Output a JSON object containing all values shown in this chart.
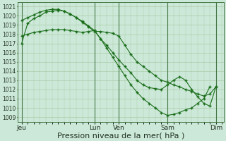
{
  "bg_color": "#cce8d8",
  "grid_color": "#aaccaa",
  "line_color": "#1a6e1a",
  "marker_color": "#1a6e1a",
  "xlabel": "Pression niveau de la mer( hPa )",
  "xlabel_fontsize": 8,
  "yticks": [
    1009,
    1010,
    1011,
    1012,
    1013,
    1014,
    1015,
    1016,
    1017,
    1018,
    1019,
    1020,
    1021
  ],
  "ylim": [
    1008.5,
    1021.5
  ],
  "xtick_labels": [
    "Jeu",
    "Lun",
    "Ven",
    "Sam",
    "Dim"
  ],
  "xtick_positions": [
    0,
    36,
    48,
    72,
    96
  ],
  "vline_positions": [
    0,
    36,
    48,
    72,
    96
  ],
  "xlim": [
    -2,
    100
  ],
  "series_x": [
    [
      0,
      3,
      6,
      9,
      12,
      15,
      18,
      21,
      24,
      27,
      30,
      33,
      36,
      39,
      42,
      45,
      48,
      51,
      54,
      57,
      60,
      63,
      66,
      69,
      72,
      75,
      78,
      81,
      84,
      87,
      90,
      93,
      96
    ],
    [
      0,
      3,
      6,
      9,
      12,
      15,
      18,
      21,
      24,
      27,
      30,
      33,
      36,
      39,
      42,
      45,
      48,
      51,
      54,
      57,
      60,
      63,
      66,
      69,
      72,
      75,
      78,
      81,
      84,
      87,
      90,
      93,
      96
    ],
    [
      0,
      3,
      6,
      9,
      12,
      15,
      18,
      21,
      24,
      27,
      30,
      33,
      36,
      39,
      42,
      45,
      48,
      51,
      54,
      57,
      60,
      63,
      66,
      69,
      72,
      75,
      78,
      81,
      84,
      87,
      90,
      93
    ]
  ],
  "series": [
    [
      1017.0,
      1019.2,
      1019.7,
      1020.0,
      1020.4,
      1020.5,
      1020.6,
      1020.5,
      1020.2,
      1019.8,
      1019.3,
      1018.8,
      1018.3,
      1018.3,
      1018.2,
      1018.1,
      1017.8,
      1016.8,
      1015.8,
      1015.0,
      1014.5,
      1014.0,
      1013.5,
      1013.0,
      1012.8,
      1012.5,
      1012.3,
      1012.0,
      1011.8,
      1011.5,
      1011.3,
      1011.5,
      1012.3
    ],
    [
      1019.5,
      1019.8,
      1020.1,
      1020.4,
      1020.6,
      1020.7,
      1020.7,
      1020.5,
      1020.2,
      1019.8,
      1019.4,
      1018.9,
      1018.4,
      1017.5,
      1016.8,
      1016.0,
      1015.2,
      1014.5,
      1013.8,
      1013.0,
      1012.5,
      1012.2,
      1012.1,
      1012.0,
      1012.5,
      1013.0,
      1013.4,
      1013.0,
      1012.0,
      1011.2,
      1010.5,
      1010.2,
      1012.3
    ],
    [
      1017.8,
      1018.0,
      1018.2,
      1018.3,
      1018.4,
      1018.5,
      1018.5,
      1018.5,
      1018.4,
      1018.3,
      1018.2,
      1018.3,
      1018.4,
      1017.5,
      1016.5,
      1015.5,
      1014.5,
      1013.5,
      1012.5,
      1011.7,
      1011.0,
      1010.5,
      1010.0,
      1009.5,
      1009.2,
      1009.3,
      1009.5,
      1009.8,
      1010.0,
      1010.5,
      1011.0,
      1012.3
    ]
  ]
}
